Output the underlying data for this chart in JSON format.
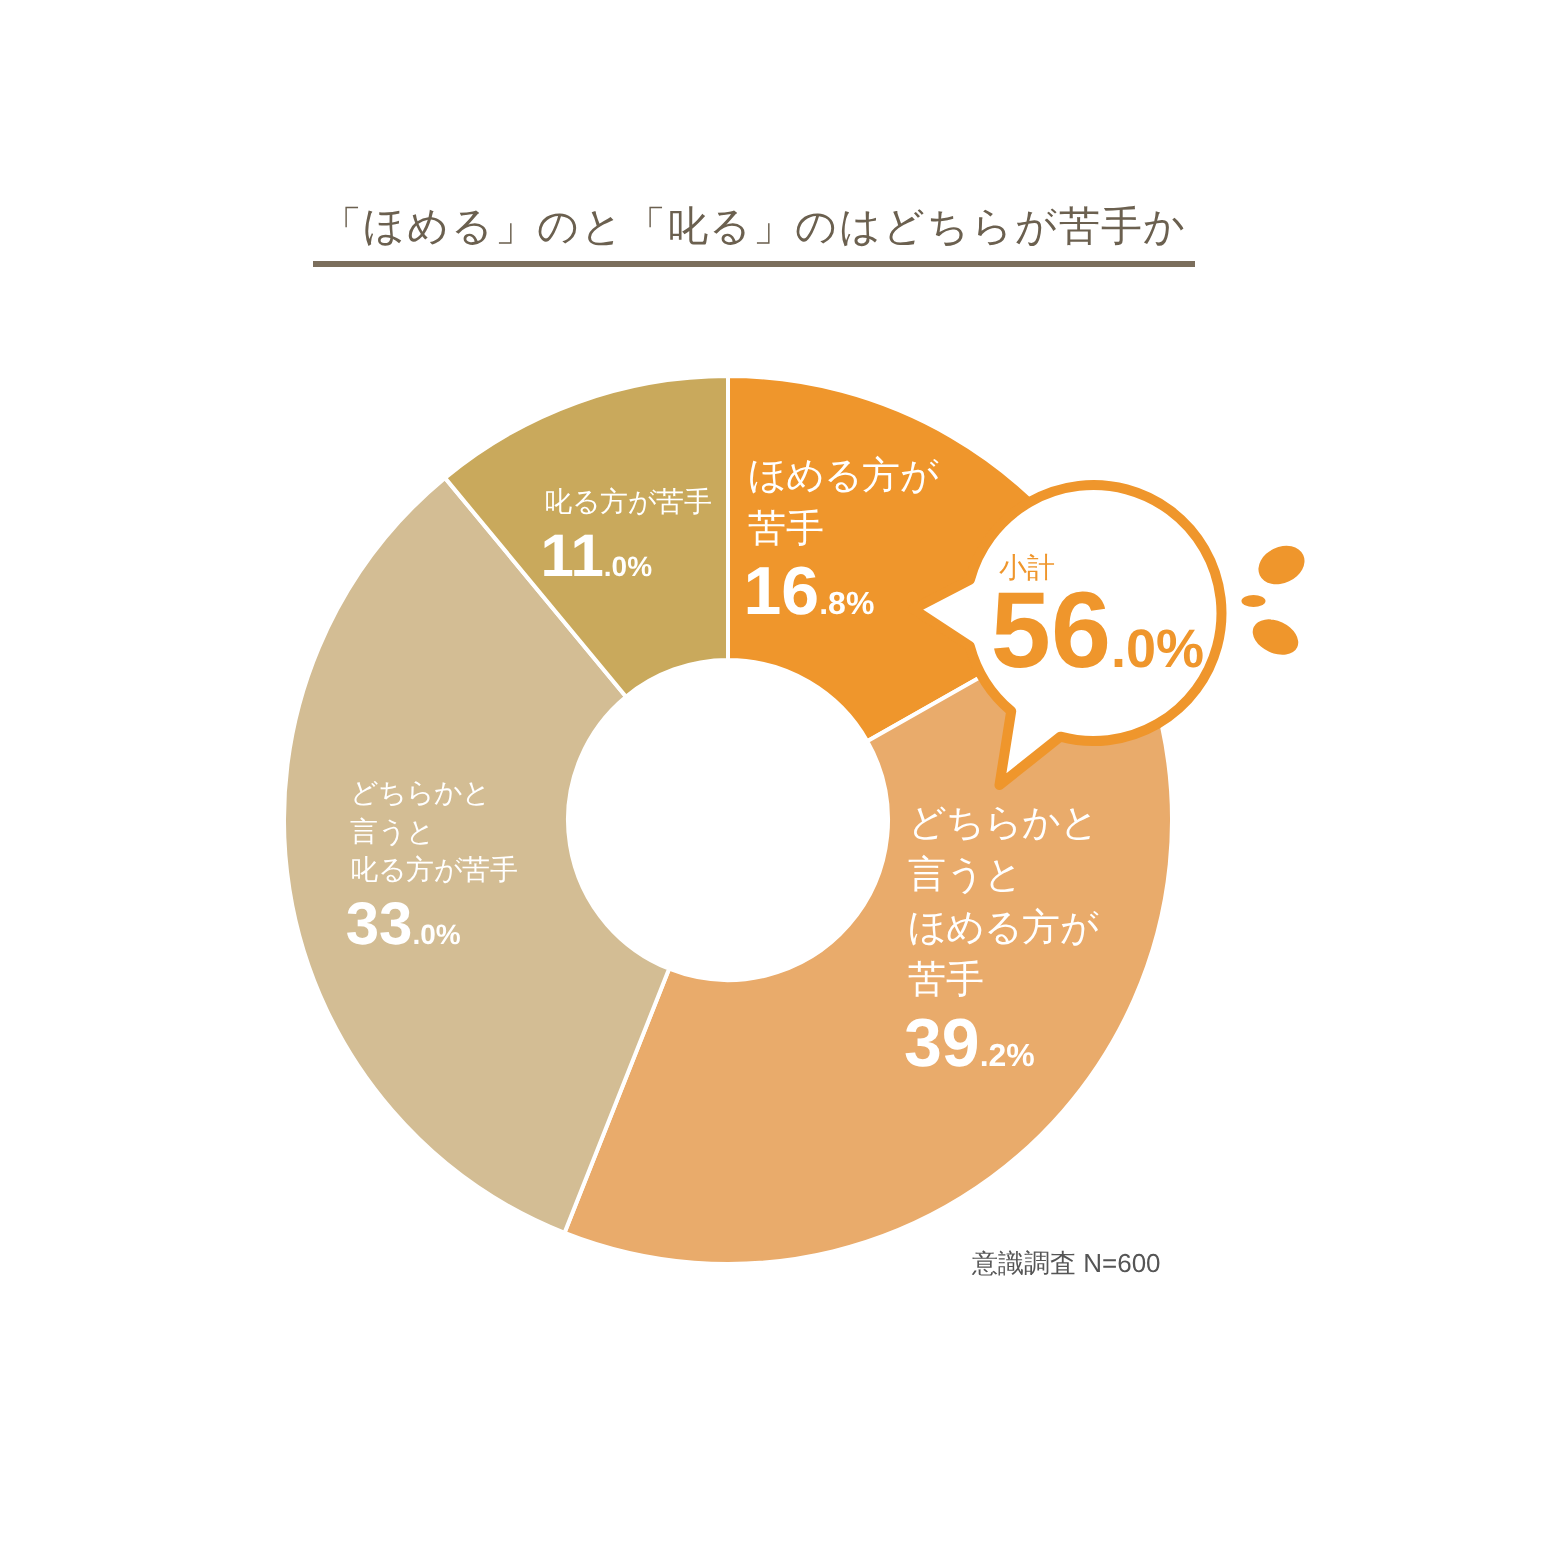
{
  "chart_data": {
    "type": "donut",
    "title": "「ほめる」のと「叱る」のはどちらが苦手か",
    "categories": [
      "ほめる方が苦手",
      "どちらかと言うとほめる方が苦手",
      "どちらかと言うと叱る方が苦手",
      "叱る方が苦手"
    ],
    "values": [
      16.8,
      39.2,
      33.0,
      11.0
    ],
    "colors": [
      "#ef962c",
      "#e9ab6b",
      "#d3bd94",
      "#c9a95c"
    ],
    "value_labels": [
      "16.8%",
      "39.2%",
      "33.0%",
      "11.0%"
    ],
    "annotations": [
      "小計 56.0%",
      "意識調査 N=600"
    ]
  }
}
